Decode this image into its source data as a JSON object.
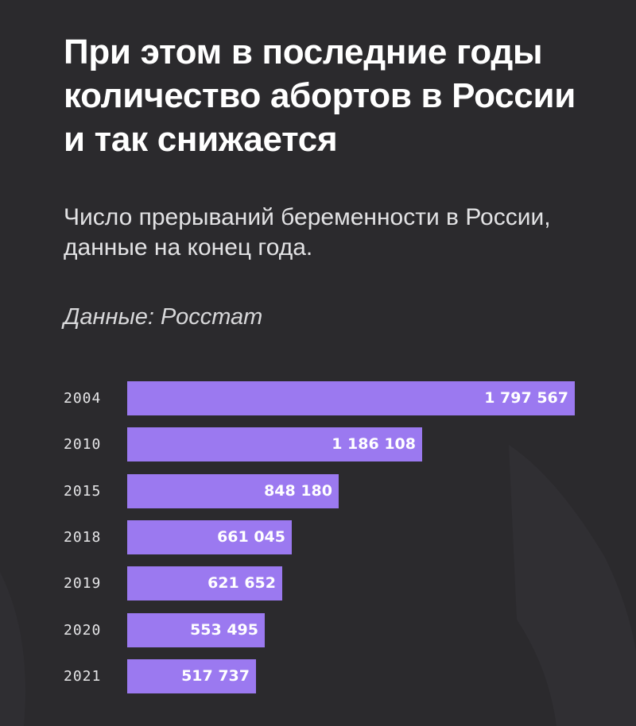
{
  "title": "При этом в последние годы количество абортов в России и так снижается",
  "subtitle": "Число прерываний беременности в России, данные на конец года.",
  "source": "Данные: Росстат",
  "chart_data": {
    "type": "bar",
    "orientation": "horizontal",
    "categories": [
      "2004",
      "2010",
      "2015",
      "2018",
      "2019",
      "2020",
      "2021"
    ],
    "values": [
      1797567,
      1186108,
      848180,
      661045,
      621652,
      553495,
      517737
    ],
    "value_labels": [
      "1 797 567",
      "1 186 108",
      "848 180",
      "661 045",
      "621 652",
      "553 495",
      "517 737"
    ],
    "bar_color": "#9b79f0",
    "grid": false,
    "legend": "none"
  }
}
